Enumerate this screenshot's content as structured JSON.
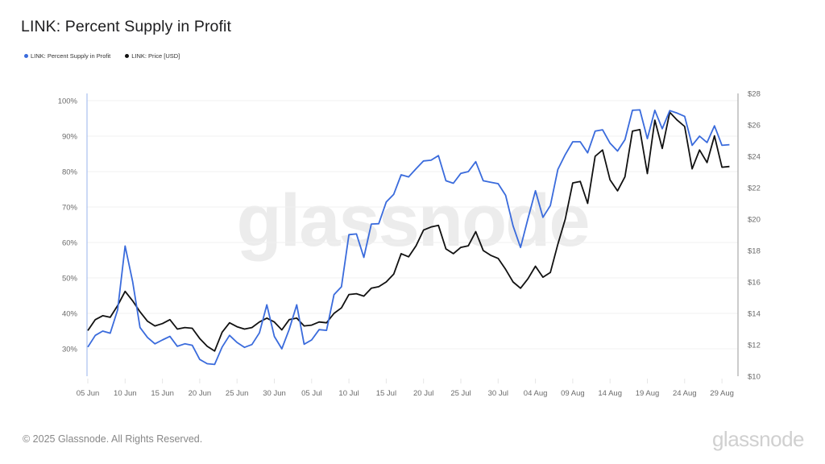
{
  "header": {
    "title": "LINK: Percent Supply in Profit"
  },
  "legend": [
    {
      "label": "LINK: Percent Supply in Profit",
      "color": "#3a6bdc"
    },
    {
      "label": "LINK: Price [USD]",
      "color": "#111111"
    }
  ],
  "footer": {
    "copyright": "© 2025 Glassnode. All Rights Reserved.",
    "logo": "glassnode"
  },
  "watermark": "glassnode",
  "chart_data": {
    "type": "line",
    "title": "LINK: Percent Supply in Profit",
    "xlabel": "",
    "ylabel_left": "Percent Supply in Profit",
    "ylabel_right": "Price [USD]",
    "x_start": "05 Jun",
    "x_end": "30 Aug",
    "x_ticks": [
      "05 Jun",
      "10 Jun",
      "15 Jun",
      "20 Jun",
      "25 Jun",
      "30 Jun",
      "05 Jul",
      "10 Jul",
      "15 Jul",
      "20 Jul",
      "25 Jul",
      "30 Jul",
      "04 Aug",
      "09 Aug",
      "14 Aug",
      "19 Aug",
      "24 Aug",
      "29 Aug"
    ],
    "y_left_ticks": [
      "30%",
      "40%",
      "50%",
      "60%",
      "70%",
      "80%",
      "90%",
      "100%"
    ],
    "y_right_ticks": [
      "$10",
      "$12",
      "$14",
      "$16",
      "$18",
      "$20",
      "$22",
      "$24",
      "$26",
      "$28"
    ],
    "ylim_left": [
      22.3,
      102
    ],
    "ylim_right": [
      10,
      28
    ],
    "grid": true,
    "legend_position": "top-left",
    "series": [
      {
        "name": "LINK: Percent Supply in Profit",
        "axis": "left",
        "color": "#3a6bdc",
        "unit": "%",
        "values": [
          30.5,
          33.8,
          35,
          34.4,
          41,
          59,
          49,
          36,
          33.2,
          31.4,
          32.5,
          33.5,
          30.7,
          31.4,
          31,
          27,
          25.8,
          25.6,
          30.5,
          33.8,
          31.8,
          30.4,
          31.2,
          34.5,
          42.4,
          33.5,
          30,
          35.5,
          42.4,
          31.3,
          32.5,
          35.4,
          35.2,
          45.3,
          47.5,
          62.2,
          62.4,
          55.8,
          65.2,
          65.3,
          71.4,
          73.6,
          79.1,
          78.5,
          80.8,
          83,
          83.2,
          84.5,
          77.4,
          76.7,
          79.5,
          80,
          82.8,
          77.4,
          77,
          76.6,
          73.3,
          64.7,
          58.6,
          66.7,
          74.6,
          67.1,
          70.4,
          80.6,
          84.8,
          88.4,
          88.4,
          85.3,
          91.4,
          91.8,
          88,
          85.8,
          89,
          97.3,
          97.4,
          89.3,
          97.3,
          92.1,
          97.2,
          96.5,
          95.6,
          87.4,
          90,
          88.2,
          92.9,
          87.4,
          87.6
        ]
      },
      {
        "name": "LINK: Price [USD]",
        "axis": "right",
        "color": "#111111",
        "unit": "USD",
        "values": [
          12.9,
          13.6,
          13.85,
          13.75,
          14.5,
          15.4,
          14.8,
          14.1,
          13.5,
          13.2,
          13.35,
          13.6,
          13.0,
          13.1,
          13.05,
          12.4,
          11.9,
          11.6,
          12.8,
          13.4,
          13.15,
          13.0,
          13.1,
          13.45,
          13.7,
          13.45,
          12.95,
          13.6,
          13.7,
          13.2,
          13.25,
          13.45,
          13.4,
          14.0,
          14.35,
          15.2,
          15.25,
          15.1,
          15.6,
          15.7,
          16.0,
          16.5,
          17.8,
          17.6,
          18.3,
          19.3,
          19.5,
          19.6,
          18.1,
          17.8,
          18.2,
          18.3,
          19.2,
          18.0,
          17.7,
          17.5,
          16.8,
          16.0,
          15.6,
          16.2,
          17.0,
          16.3,
          16.6,
          18.4,
          20.0,
          22.3,
          22.4,
          21.0,
          24.0,
          24.4,
          22.5,
          21.8,
          22.7,
          25.6,
          25.7,
          22.9,
          26.3,
          24.5,
          26.8,
          26.3,
          25.9,
          23.2,
          24.4,
          23.6,
          25.3,
          23.3,
          23.35
        ]
      }
    ]
  }
}
